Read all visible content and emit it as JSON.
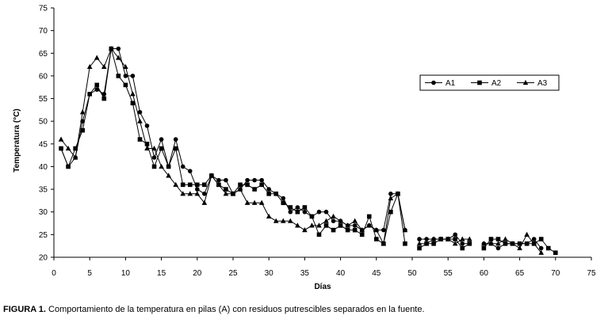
{
  "chart_data": {
    "type": "line",
    "xlabel": "Días",
    "ylabel": "Temperatura (°C)",
    "xlim": [
      0,
      75
    ],
    "ylim": [
      20,
      75
    ],
    "xticks": [
      0,
      5,
      10,
      15,
      20,
      25,
      30,
      35,
      40,
      45,
      50,
      55,
      60,
      65,
      70,
      75
    ],
    "yticks": [
      20,
      25,
      30,
      35,
      40,
      45,
      50,
      55,
      60,
      65,
      70,
      75
    ],
    "legend_position": "top-right",
    "grid": false,
    "series": [
      {
        "name": "A1",
        "marker": "circle",
        "x": [
          1,
          2,
          3,
          4,
          5,
          6,
          7,
          8,
          9,
          10,
          11,
          12,
          13,
          14,
          15,
          16,
          17,
          18,
          19,
          20,
          21,
          22,
          23,
          24,
          25,
          26,
          27,
          28,
          29,
          30,
          31,
          32,
          33,
          34,
          35,
          36,
          37,
          38,
          39,
          40,
          41,
          42,
          43,
          44,
          45,
          46,
          47,
          48,
          49,
          51,
          52,
          53,
          54,
          55,
          56,
          57,
          58,
          60,
          61,
          62,
          63,
          64,
          65,
          66,
          67,
          68
        ],
        "y": [
          44,
          40,
          42,
          50,
          56,
          57,
          56,
          66,
          66,
          60,
          60,
          52,
          49,
          42,
          46,
          40,
          46,
          40,
          39,
          35,
          34,
          38,
          37,
          37,
          34,
          35,
          37,
          37,
          37,
          35,
          34,
          33,
          30,
          31,
          30,
          29,
          30,
          30,
          28,
          28,
          27,
          27,
          26,
          27,
          26,
          26,
          34,
          34,
          26,
          24,
          24,
          24,
          24,
          24,
          25,
          23,
          23,
          23,
          23,
          22,
          23,
          23,
          23,
          23,
          24,
          22
        ]
      },
      {
        "name": "A2",
        "marker": "square",
        "x": [
          1,
          2,
          3,
          4,
          5,
          6,
          7,
          8,
          9,
          10,
          11,
          12,
          13,
          14,
          15,
          16,
          17,
          18,
          19,
          20,
          21,
          22,
          23,
          24,
          25,
          26,
          27,
          28,
          29,
          30,
          31,
          32,
          33,
          34,
          35,
          36,
          37,
          38,
          39,
          40,
          41,
          42,
          43,
          44,
          45,
          46,
          47,
          48,
          49,
          51,
          52,
          53,
          54,
          55,
          56,
          57,
          58,
          60,
          61,
          62,
          63,
          64,
          65,
          66,
          67,
          68,
          69,
          70
        ],
        "y": [
          44,
          40,
          44,
          48,
          56,
          58,
          55,
          66,
          60,
          58,
          54,
          46,
          45,
          40,
          44,
          40,
          44,
          36,
          36,
          36,
          36,
          38,
          36,
          35,
          34,
          36,
          36,
          35,
          36,
          34,
          34,
          32,
          31,
          30,
          31,
          29,
          25,
          27,
          26,
          27,
          26,
          26,
          25,
          29,
          24,
          23,
          30,
          34,
          23,
          22,
          23,
          23,
          24,
          24,
          24,
          22,
          23,
          22,
          24,
          24,
          23,
          23,
          23,
          23,
          23,
          24,
          22,
          21
        ]
      },
      {
        "name": "A3",
        "marker": "triangle",
        "x": [
          1,
          2,
          3,
          4,
          5,
          6,
          7,
          8,
          9,
          10,
          11,
          12,
          13,
          14,
          15,
          16,
          17,
          18,
          19,
          20,
          21,
          22,
          23,
          24,
          25,
          26,
          27,
          28,
          29,
          30,
          31,
          32,
          33,
          34,
          35,
          36,
          37,
          38,
          39,
          40,
          41,
          42,
          43,
          44,
          45,
          46,
          47,
          48,
          49,
          51,
          52,
          53,
          54,
          55,
          56,
          57,
          58,
          60,
          61,
          62,
          63,
          64,
          65,
          66,
          67,
          68
        ],
        "y": [
          46,
          44,
          42,
          52,
          62,
          64,
          62,
          66,
          64,
          62,
          56,
          50,
          44,
          44,
          40,
          38,
          36,
          34,
          34,
          34,
          32,
          38,
          36,
          34,
          34,
          35,
          32,
          32,
          32,
          29,
          28,
          28,
          28,
          27,
          26,
          27,
          27,
          28,
          29,
          28,
          27,
          28,
          26,
          27,
          26,
          23,
          33,
          34,
          26,
          23,
          23,
          24,
          24,
          24,
          23,
          24,
          24,
          23,
          23,
          23,
          24,
          23,
          22,
          25,
          23,
          21
        ]
      }
    ]
  },
  "caption": {
    "label": "FIGURA 1.",
    "text": " Comportamiento de la temperatura en pilas (A) con residuos putrescibles separados en la fuente."
  }
}
